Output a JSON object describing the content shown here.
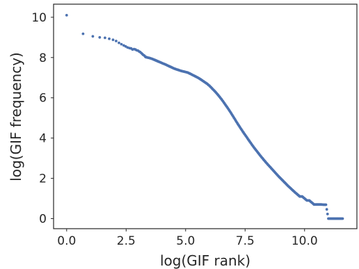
{
  "chart_data": {
    "type": "scatter",
    "title": "",
    "xlabel": "log(GIF rank)",
    "ylabel": "log(GIF frequency)",
    "xlim": [
      -0.55,
      12.2
    ],
    "ylim": [
      -0.5,
      10.65
    ],
    "xticks": [
      0.0,
      2.5,
      5.0,
      7.5,
      10.0
    ],
    "xtick_labels": [
      "0.0",
      "2.5",
      "5.0",
      "7.5",
      "10.0"
    ],
    "yticks": [
      0,
      2,
      4,
      6,
      8,
      10
    ],
    "ytick_labels": [
      "0",
      "2",
      "4",
      "6",
      "8",
      "10"
    ],
    "grid": false,
    "legend": "none",
    "marker_color": "#4c72b0",
    "series": [
      {
        "x": [
          0.0,
          0.69,
          1.1,
          1.39,
          1.61,
          1.79,
          1.95,
          2.08,
          2.2,
          2.3,
          2.4,
          2.48,
          2.56,
          2.64,
          2.71,
          2.77,
          2.83,
          2.89,
          2.94,
          3.0,
          3.05,
          3.09,
          3.14,
          3.18,
          3.22,
          3.26,
          3.3,
          3.33,
          3.4,
          3.5,
          3.6,
          3.7,
          3.8,
          3.9,
          4.0,
          4.1,
          4.2,
          4.3,
          4.4,
          4.5,
          4.6,
          4.7,
          4.8,
          4.9,
          5.0,
          5.1,
          5.2,
          5.3,
          5.4,
          5.5,
          5.6,
          5.7,
          5.8,
          5.9,
          6.0,
          6.1,
          6.2,
          6.3,
          6.4,
          6.5,
          6.6,
          6.7,
          6.8,
          6.9,
          7.0,
          7.1,
          7.2,
          7.3,
          7.4,
          7.5,
          7.6,
          7.7,
          7.8,
          7.9,
          8.0,
          8.1,
          8.2,
          8.3,
          8.4,
          8.5,
          8.6,
          8.7,
          8.8,
          8.9,
          9.0,
          9.1,
          9.2,
          9.3,
          9.4,
          9.5,
          9.6,
          9.7,
          9.8,
          9.9,
          10.0,
          10.1,
          10.2,
          10.3,
          10.4,
          10.5,
          10.6,
          10.7,
          10.8,
          10.9,
          11.0,
          11.1,
          11.2,
          11.3,
          11.4,
          11.5,
          11.6
        ],
        "y": [
          10.1,
          9.18,
          9.05,
          9.0,
          8.98,
          8.93,
          8.88,
          8.82,
          8.73,
          8.66,
          8.6,
          8.55,
          8.5,
          8.47,
          8.45,
          8.4,
          8.42,
          8.4,
          8.36,
          8.34,
          8.3,
          8.27,
          8.22,
          8.17,
          8.13,
          8.1,
          8.05,
          8.02,
          8.0,
          7.97,
          7.93,
          7.88,
          7.83,
          7.78,
          7.73,
          7.68,
          7.63,
          7.57,
          7.52,
          7.46,
          7.42,
          7.38,
          7.34,
          7.31,
          7.28,
          7.25,
          7.19,
          7.13,
          7.07,
          7.01,
          6.94,
          6.86,
          6.78,
          6.7,
          6.6,
          6.48,
          6.36,
          6.23,
          6.09,
          5.94,
          5.78,
          5.61,
          5.44,
          5.26,
          5.07,
          4.88,
          4.69,
          4.51,
          4.33,
          4.16,
          3.99,
          3.82,
          3.65,
          3.49,
          3.34,
          3.19,
          3.04,
          2.9,
          2.76,
          2.63,
          2.5,
          2.37,
          2.24,
          2.11,
          1.99,
          1.87,
          1.75,
          1.63,
          1.52,
          1.41,
          1.3,
          1.2,
          1.1,
          1.1,
          1.0,
          0.9,
          0.9,
          0.8,
          0.7,
          0.7,
          0.7,
          0.7,
          0.69,
          0.69,
          0.0,
          0.0,
          0.0,
          0.0,
          0.0,
          0.0,
          0.0
        ]
      }
    ]
  }
}
